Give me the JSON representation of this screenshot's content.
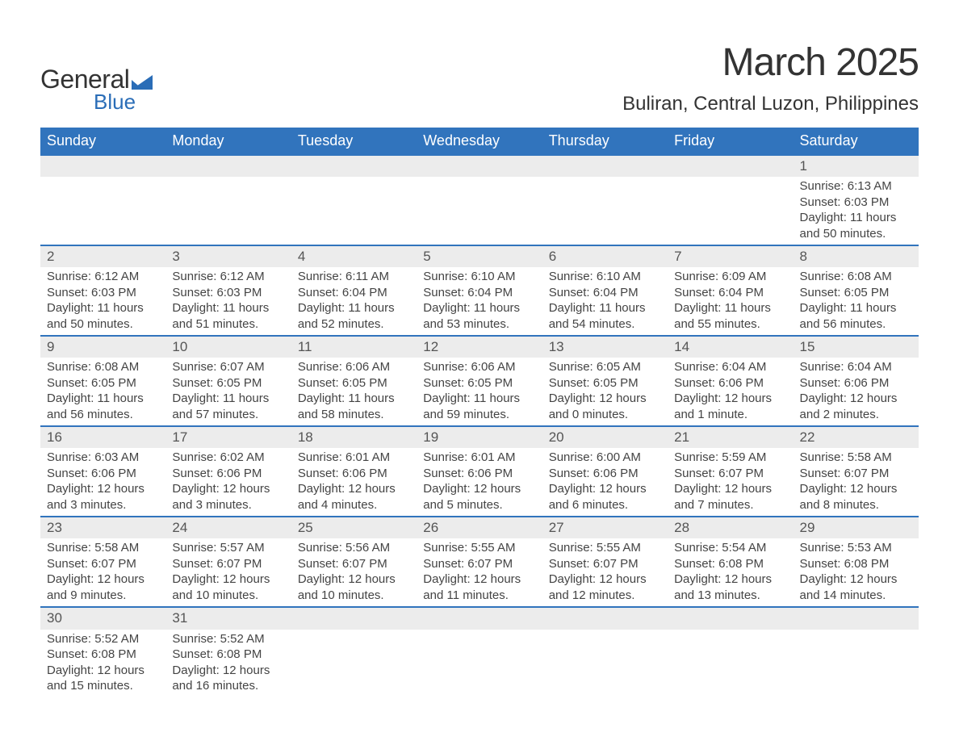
{
  "logo": {
    "general": "General",
    "blue": "Blue",
    "shape_color": "#2a6db7"
  },
  "title": "March 2025",
  "location": "Buliran, Central Luzon, Philippines",
  "colors": {
    "header_bg": "#3174bd",
    "header_text": "#ffffff",
    "daynum_bg": "#ececec",
    "row_border": "#3174bd",
    "body_text": "#444444",
    "title_text": "#333333",
    "page_bg": "#ffffff"
  },
  "font": {
    "family": "Arial",
    "title_pt": 48,
    "location_pt": 24,
    "header_pt": 18,
    "daynum_pt": 17,
    "detail_pt": 15
  },
  "weekdays": [
    "Sunday",
    "Monday",
    "Tuesday",
    "Wednesday",
    "Thursday",
    "Friday",
    "Saturday"
  ],
  "weeks": [
    {
      "days": [
        null,
        null,
        null,
        null,
        null,
        null,
        {
          "n": "1",
          "sunrise": "Sunrise: 6:13 AM",
          "sunset": "Sunset: 6:03 PM",
          "day1": "Daylight: 11 hours",
          "day2": "and 50 minutes."
        }
      ]
    },
    {
      "days": [
        {
          "n": "2",
          "sunrise": "Sunrise: 6:12 AM",
          "sunset": "Sunset: 6:03 PM",
          "day1": "Daylight: 11 hours",
          "day2": "and 50 minutes."
        },
        {
          "n": "3",
          "sunrise": "Sunrise: 6:12 AM",
          "sunset": "Sunset: 6:03 PM",
          "day1": "Daylight: 11 hours",
          "day2": "and 51 minutes."
        },
        {
          "n": "4",
          "sunrise": "Sunrise: 6:11 AM",
          "sunset": "Sunset: 6:04 PM",
          "day1": "Daylight: 11 hours",
          "day2": "and 52 minutes."
        },
        {
          "n": "5",
          "sunrise": "Sunrise: 6:10 AM",
          "sunset": "Sunset: 6:04 PM",
          "day1": "Daylight: 11 hours",
          "day2": "and 53 minutes."
        },
        {
          "n": "6",
          "sunrise": "Sunrise: 6:10 AM",
          "sunset": "Sunset: 6:04 PM",
          "day1": "Daylight: 11 hours",
          "day2": "and 54 minutes."
        },
        {
          "n": "7",
          "sunrise": "Sunrise: 6:09 AM",
          "sunset": "Sunset: 6:04 PM",
          "day1": "Daylight: 11 hours",
          "day2": "and 55 minutes."
        },
        {
          "n": "8",
          "sunrise": "Sunrise: 6:08 AM",
          "sunset": "Sunset: 6:05 PM",
          "day1": "Daylight: 11 hours",
          "day2": "and 56 minutes."
        }
      ]
    },
    {
      "days": [
        {
          "n": "9",
          "sunrise": "Sunrise: 6:08 AM",
          "sunset": "Sunset: 6:05 PM",
          "day1": "Daylight: 11 hours",
          "day2": "and 56 minutes."
        },
        {
          "n": "10",
          "sunrise": "Sunrise: 6:07 AM",
          "sunset": "Sunset: 6:05 PM",
          "day1": "Daylight: 11 hours",
          "day2": "and 57 minutes."
        },
        {
          "n": "11",
          "sunrise": "Sunrise: 6:06 AM",
          "sunset": "Sunset: 6:05 PM",
          "day1": "Daylight: 11 hours",
          "day2": "and 58 minutes."
        },
        {
          "n": "12",
          "sunrise": "Sunrise: 6:06 AM",
          "sunset": "Sunset: 6:05 PM",
          "day1": "Daylight: 11 hours",
          "day2": "and 59 minutes."
        },
        {
          "n": "13",
          "sunrise": "Sunrise: 6:05 AM",
          "sunset": "Sunset: 6:05 PM",
          "day1": "Daylight: 12 hours",
          "day2": "and 0 minutes."
        },
        {
          "n": "14",
          "sunrise": "Sunrise: 6:04 AM",
          "sunset": "Sunset: 6:06 PM",
          "day1": "Daylight: 12 hours",
          "day2": "and 1 minute."
        },
        {
          "n": "15",
          "sunrise": "Sunrise: 6:04 AM",
          "sunset": "Sunset: 6:06 PM",
          "day1": "Daylight: 12 hours",
          "day2": "and 2 minutes."
        }
      ]
    },
    {
      "days": [
        {
          "n": "16",
          "sunrise": "Sunrise: 6:03 AM",
          "sunset": "Sunset: 6:06 PM",
          "day1": "Daylight: 12 hours",
          "day2": "and 3 minutes."
        },
        {
          "n": "17",
          "sunrise": "Sunrise: 6:02 AM",
          "sunset": "Sunset: 6:06 PM",
          "day1": "Daylight: 12 hours",
          "day2": "and 3 minutes."
        },
        {
          "n": "18",
          "sunrise": "Sunrise: 6:01 AM",
          "sunset": "Sunset: 6:06 PM",
          "day1": "Daylight: 12 hours",
          "day2": "and 4 minutes."
        },
        {
          "n": "19",
          "sunrise": "Sunrise: 6:01 AM",
          "sunset": "Sunset: 6:06 PM",
          "day1": "Daylight: 12 hours",
          "day2": "and 5 minutes."
        },
        {
          "n": "20",
          "sunrise": "Sunrise: 6:00 AM",
          "sunset": "Sunset: 6:06 PM",
          "day1": "Daylight: 12 hours",
          "day2": "and 6 minutes."
        },
        {
          "n": "21",
          "sunrise": "Sunrise: 5:59 AM",
          "sunset": "Sunset: 6:07 PM",
          "day1": "Daylight: 12 hours",
          "day2": "and 7 minutes."
        },
        {
          "n": "22",
          "sunrise": "Sunrise: 5:58 AM",
          "sunset": "Sunset: 6:07 PM",
          "day1": "Daylight: 12 hours",
          "day2": "and 8 minutes."
        }
      ]
    },
    {
      "days": [
        {
          "n": "23",
          "sunrise": "Sunrise: 5:58 AM",
          "sunset": "Sunset: 6:07 PM",
          "day1": "Daylight: 12 hours",
          "day2": "and 9 minutes."
        },
        {
          "n": "24",
          "sunrise": "Sunrise: 5:57 AM",
          "sunset": "Sunset: 6:07 PM",
          "day1": "Daylight: 12 hours",
          "day2": "and 10 minutes."
        },
        {
          "n": "25",
          "sunrise": "Sunrise: 5:56 AM",
          "sunset": "Sunset: 6:07 PM",
          "day1": "Daylight: 12 hours",
          "day2": "and 10 minutes."
        },
        {
          "n": "26",
          "sunrise": "Sunrise: 5:55 AM",
          "sunset": "Sunset: 6:07 PM",
          "day1": "Daylight: 12 hours",
          "day2": "and 11 minutes."
        },
        {
          "n": "27",
          "sunrise": "Sunrise: 5:55 AM",
          "sunset": "Sunset: 6:07 PM",
          "day1": "Daylight: 12 hours",
          "day2": "and 12 minutes."
        },
        {
          "n": "28",
          "sunrise": "Sunrise: 5:54 AM",
          "sunset": "Sunset: 6:08 PM",
          "day1": "Daylight: 12 hours",
          "day2": "and 13 minutes."
        },
        {
          "n": "29",
          "sunrise": "Sunrise: 5:53 AM",
          "sunset": "Sunset: 6:08 PM",
          "day1": "Daylight: 12 hours",
          "day2": "and 14 minutes."
        }
      ]
    },
    {
      "days": [
        {
          "n": "30",
          "sunrise": "Sunrise: 5:52 AM",
          "sunset": "Sunset: 6:08 PM",
          "day1": "Daylight: 12 hours",
          "day2": "and 15 minutes."
        },
        {
          "n": "31",
          "sunrise": "Sunrise: 5:52 AM",
          "sunset": "Sunset: 6:08 PM",
          "day1": "Daylight: 12 hours",
          "day2": "and 16 minutes."
        },
        null,
        null,
        null,
        null,
        null
      ]
    }
  ]
}
